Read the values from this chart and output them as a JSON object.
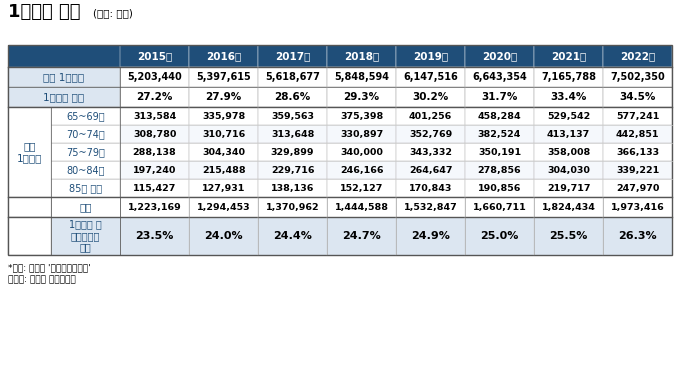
{
  "title": "1인가구 추이",
  "title_unit": "(단위: 가구)",
  "years": [
    "2015년",
    "2016년",
    "2017년",
    "2018년",
    "2019년",
    "2020년",
    "2021년",
    "2022년"
  ],
  "header_bg": "#1f4e79",
  "header_fg": "#ffffff",
  "row1_label": "전체 1인가구",
  "row1_values": [
    "5,203,440",
    "5,397,615",
    "5,618,677",
    "5,848,594",
    "6,147,516",
    "6,643,354",
    "7,165,788",
    "7,502,350"
  ],
  "row2_label": "1인가구 비율",
  "row2_values": [
    "27.2%",
    "27.9%",
    "28.6%",
    "29.3%",
    "30.2%",
    "31.7%",
    "33.4%",
    "34.5%"
  ],
  "side_label": "노인\n1인가구",
  "sub_rows": [
    {
      "label": "65~69세",
      "values": [
        "313,584",
        "335,978",
        "359,563",
        "375,398",
        "401,256",
        "458,284",
        "529,542",
        "577,241"
      ]
    },
    {
      "label": "70~74세",
      "values": [
        "308,780",
        "310,716",
        "313,648",
        "330,897",
        "352,769",
        "382,524",
        "413,137",
        "442,851"
      ]
    },
    {
      "label": "75~79세",
      "values": [
        "288,138",
        "304,340",
        "329,899",
        "340,000",
        "343,332",
        "350,191",
        "358,008",
        "366,133"
      ]
    },
    {
      "label": "80~84세",
      "values": [
        "197,240",
        "215,488",
        "229,716",
        "246,166",
        "264,647",
        "278,856",
        "304,030",
        "339,221"
      ]
    },
    {
      "label": "85세 이상",
      "values": [
        "115,427",
        "127,931",
        "138,136",
        "152,127",
        "170,843",
        "190,856",
        "219,717",
        "247,970"
      ]
    }
  ],
  "subtotal_label": "소계",
  "subtotal_values": [
    "1,223,169",
    "1,294,453",
    "1,370,962",
    "1,444,588",
    "1,532,847",
    "1,660,711",
    "1,824,434",
    "1,973,416"
  ],
  "ratio_label": "1인가구 중\n노인가구의\n비율",
  "ratio_values": [
    "23.5%",
    "24.0%",
    "24.4%",
    "24.7%",
    "24.9%",
    "25.0%",
    "25.5%",
    "26.3%"
  ],
  "footnote1": "*지료: 통계청 '인구주택총조사'",
  "footnote2": "그래픽: 이지혜 디자인기자",
  "blue_text": "#1f4e79",
  "dark_blue_header": "#1f4e79",
  "light_blue_row1": "#dce6f1",
  "white": "#ffffff",
  "light_gray": "#f2f2f2",
  "row_bg_alt": "#e9f0f8"
}
